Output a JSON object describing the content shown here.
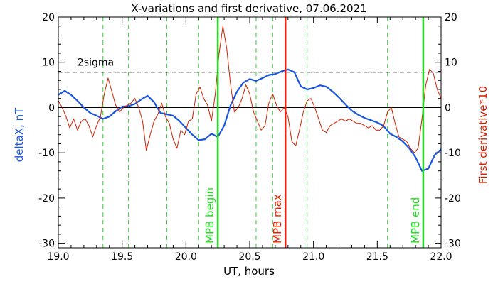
{
  "chart_data": {
    "type": "line",
    "title": "X-variations and first derivative, 07.06.2021",
    "xlabel": "UT, hours",
    "ylabel_left": "deltaX, nT",
    "ylabel_right": "First derivative*10",
    "xlim": [
      19.0,
      22.0
    ],
    "ylim": [
      -31,
      20
    ],
    "xticks": [
      "19.0",
      "19.5",
      "20.0",
      "20.5",
      "21.0",
      "21.5",
      "22.0"
    ],
    "xtick_values": [
      19.0,
      19.5,
      20.0,
      20.5,
      21.0,
      21.5,
      22.0
    ],
    "yticks": [
      "20",
      "10",
      "0",
      "-10",
      "-20",
      "-30"
    ],
    "ytick_values": [
      20,
      10,
      0,
      -10,
      -20,
      -30
    ],
    "threshold": {
      "label": "2sigma",
      "value": 7.8
    },
    "green_dashed_x": [
      19.35,
      19.55,
      19.85,
      20.1,
      20.55,
      20.68,
      20.95,
      21.58
    ],
    "markers": [
      {
        "label": "MPB begin",
        "x": 20.25,
        "color": "#22dd22"
      },
      {
        "label": "MPB max",
        "x": 20.78,
        "color": "#ee2200"
      },
      {
        "label": "MPB end",
        "x": 21.86,
        "color": "#22dd22"
      }
    ],
    "series": [
      {
        "color": "#1a55e0",
        "x": [
          19.0,
          19.05,
          19.1,
          19.15,
          19.2,
          19.25,
          19.3,
          19.35,
          19.4,
          19.45,
          19.5,
          19.55,
          19.6,
          19.65,
          19.7,
          19.75,
          19.8,
          19.85,
          19.9,
          19.95,
          20.0,
          20.05,
          20.1,
          20.15,
          20.2,
          20.25,
          20.3,
          20.35,
          20.4,
          20.45,
          20.5,
          20.55,
          20.6,
          20.65,
          20.7,
          20.75,
          20.8,
          20.85,
          20.9,
          20.95,
          21.0,
          21.05,
          21.1,
          21.15,
          21.2,
          21.25,
          21.3,
          21.35,
          21.4,
          21.45,
          21.5,
          21.55,
          21.6,
          21.65,
          21.7,
          21.75,
          21.8,
          21.85,
          21.9,
          21.95,
          22.0
        ],
        "values": [
          2.8,
          3.7,
          2.8,
          1.5,
          0.0,
          -1.2,
          -1.8,
          -2.5,
          -2.0,
          -0.8,
          0.2,
          0.3,
          0.8,
          1.8,
          2.6,
          1.2,
          -1.2,
          -1.5,
          -1.8,
          -3.0,
          -4.5,
          -6.0,
          -7.2,
          -7.0,
          -5.8,
          -6.5,
          -4.0,
          0.5,
          3.5,
          5.5,
          6.3,
          5.9,
          6.5,
          7.2,
          7.4,
          8.0,
          8.4,
          7.8,
          4.7,
          4.0,
          4.3,
          4.9,
          4.6,
          3.5,
          2.2,
          0.7,
          -0.7,
          -1.6,
          -2.3,
          -2.8,
          -3.3,
          -4.1,
          -5.8,
          -6.5,
          -7.5,
          -9.0,
          -11.0,
          -14.0,
          -13.5,
          -10.5,
          -9.2
        ]
      },
      {
        "color": "#d02000",
        "x": [
          19.0,
          19.03,
          19.06,
          19.09,
          19.12,
          19.15,
          19.18,
          19.21,
          19.24,
          19.27,
          19.3,
          19.33,
          19.36,
          19.39,
          19.42,
          19.45,
          19.48,
          19.51,
          19.54,
          19.57,
          19.6,
          19.63,
          19.66,
          19.69,
          19.72,
          19.75,
          19.78,
          19.81,
          19.84,
          19.87,
          19.9,
          19.93,
          19.96,
          19.99,
          20.02,
          20.05,
          20.08,
          20.11,
          20.14,
          20.17,
          20.2,
          20.23,
          20.26,
          20.29,
          20.32,
          20.35,
          20.38,
          20.41,
          20.44,
          20.47,
          20.5,
          20.53,
          20.56,
          20.59,
          20.62,
          20.65,
          20.68,
          20.71,
          20.74,
          20.77,
          20.8,
          20.83,
          20.86,
          20.89,
          20.92,
          20.95,
          20.98,
          21.01,
          21.04,
          21.07,
          21.1,
          21.13,
          21.16,
          21.19,
          21.22,
          21.25,
          21.28,
          21.31,
          21.34,
          21.37,
          21.4,
          21.43,
          21.46,
          21.49,
          21.52,
          21.55,
          21.58,
          21.61,
          21.64,
          21.67,
          21.7,
          21.73,
          21.76,
          21.79,
          21.82,
          21.85,
          21.88,
          21.91,
          21.94,
          21.97,
          22.0
        ],
        "values": [
          1.5,
          0.0,
          -2.0,
          -4.5,
          -2.5,
          -5.0,
          -3.0,
          -2.5,
          -4.0,
          -6.5,
          -4.0,
          -2.0,
          3.0,
          6.5,
          3.5,
          0.5,
          -1.0,
          0.0,
          0.5,
          1.0,
          2.0,
          0.0,
          -3.0,
          -9.5,
          -6.0,
          -3.0,
          -1.5,
          1.0,
          -2.0,
          -3.5,
          -7.0,
          -9.0,
          -5.0,
          -6.0,
          -3.0,
          -2.5,
          3.0,
          4.5,
          2.0,
          0.5,
          -3.0,
          3.0,
          12.0,
          18.0,
          13.0,
          5.0,
          -1.0,
          0.0,
          2.0,
          5.0,
          3.0,
          -1.0,
          -3.0,
          -5.0,
          -4.0,
          1.0,
          3.0,
          0.5,
          -1.0,
          0.0,
          -2.0,
          -7.5,
          -8.5,
          -5.0,
          -1.0,
          1.5,
          2.0,
          0.0,
          -2.5,
          -5.0,
          -5.5,
          -4.0,
          -3.5,
          -3.0,
          -2.5,
          -3.0,
          -2.5,
          -3.0,
          -3.5,
          -3.5,
          -4.0,
          -4.5,
          -4.0,
          -5.0,
          -5.0,
          -4.0,
          -1.0,
          0.0,
          -3.5,
          -6.5,
          -7.0,
          -7.5,
          -9.0,
          -10.0,
          -9.0,
          -2.5,
          5.0,
          8.5,
          7.5,
          4.0,
          2.0
        ]
      }
    ]
  }
}
